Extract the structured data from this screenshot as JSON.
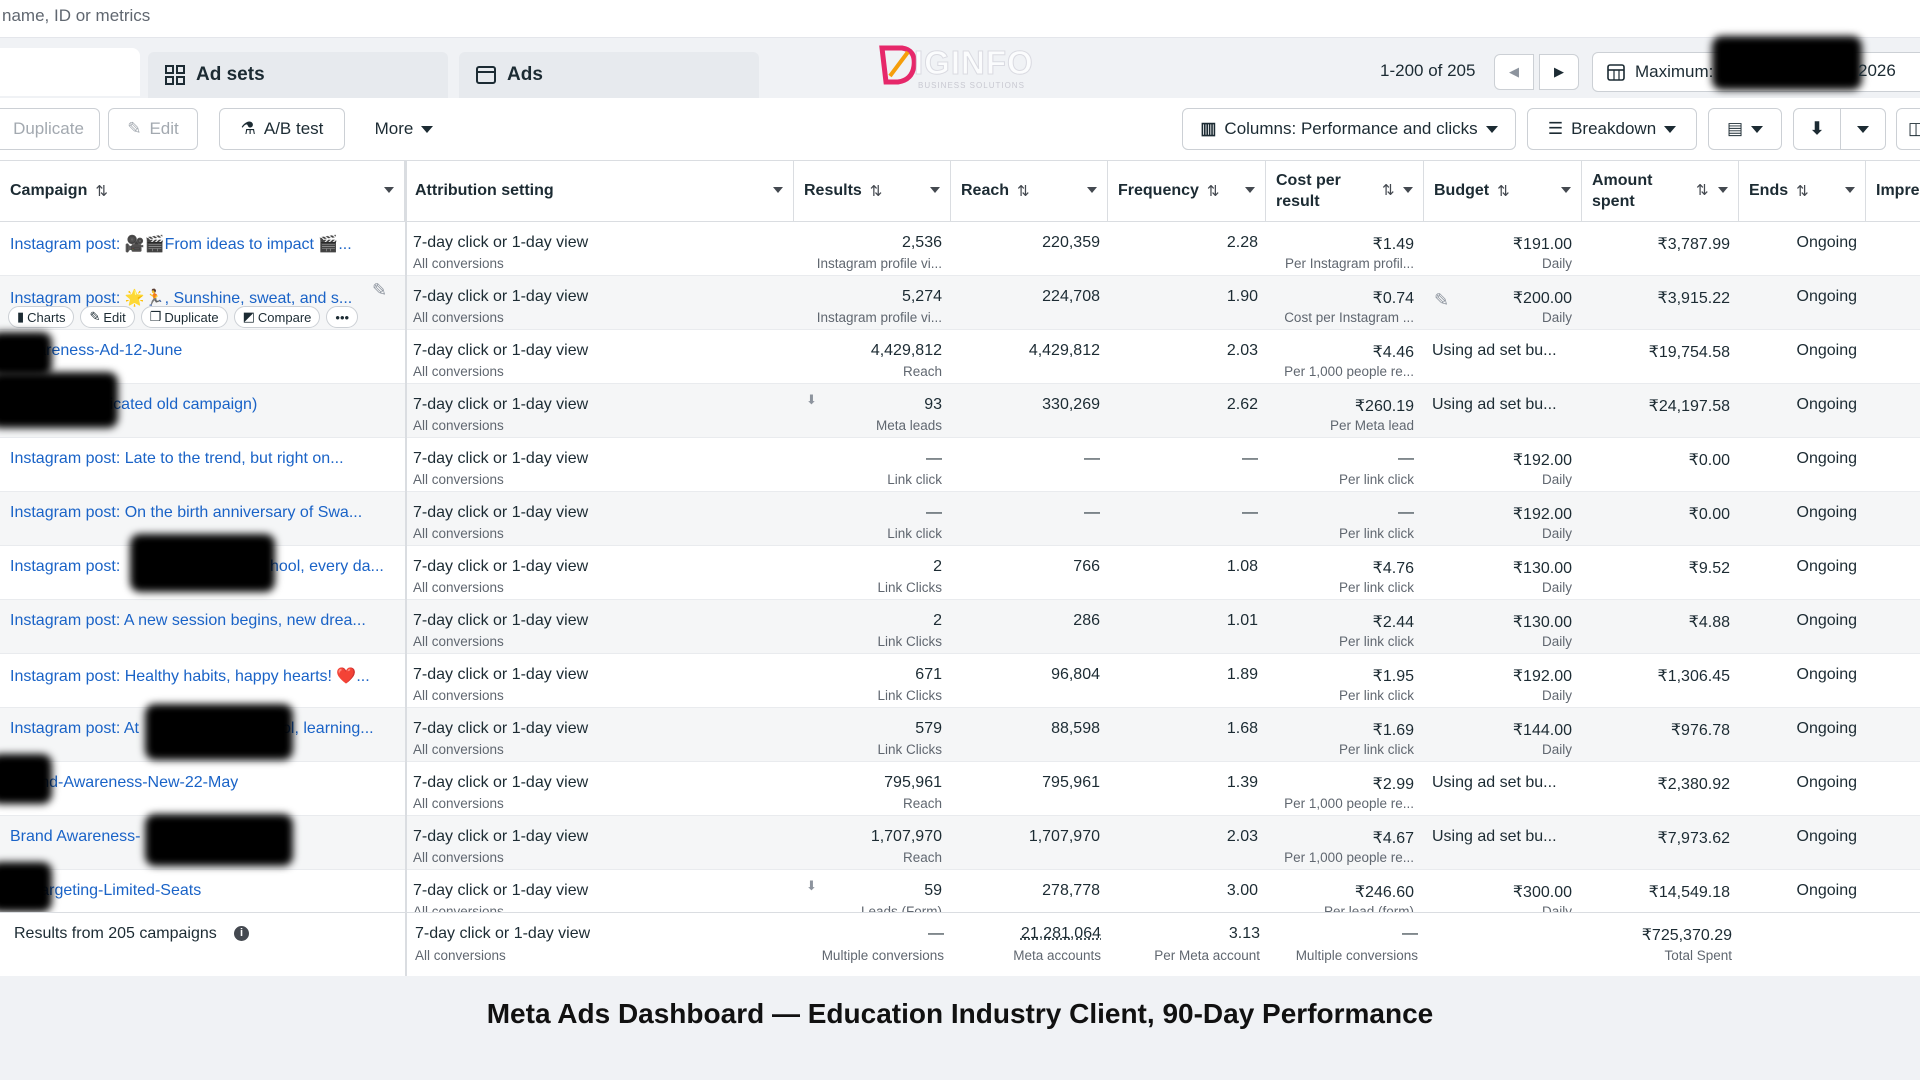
{
  "search": {
    "placeholder": "name, ID or metrics"
  },
  "tabs": {
    "adsets": "Ad sets",
    "ads": "Ads"
  },
  "logo": {
    "text": "IGINFO",
    "subtext": "BUSINESS SOLUTIONS"
  },
  "pagination": {
    "range": "1-200 of 205"
  },
  "date_range": {
    "label": "Maximum:",
    "year_suffix": "2026"
  },
  "toolbar": {
    "duplicate": "Duplicate",
    "edit": "Edit",
    "ab_test": "A/B test",
    "more": "More",
    "columns": "Columns: Performance and clicks",
    "breakdown": "Breakdown"
  },
  "headers": {
    "campaign": "Campaign",
    "attribution": "Attribution setting",
    "results": "Results",
    "reach": "Reach",
    "frequency": "Frequency",
    "cost_line1": "Cost per",
    "cost_line2": "result",
    "budget": "Budget",
    "amount_line1": "Amount",
    "amount_line2": "spent",
    "ends": "Ends",
    "impressions": "Impres"
  },
  "row_actions": {
    "charts": "Charts",
    "edit": "Edit",
    "duplicate": "Duplicate",
    "compare": "Compare",
    "more": "•••"
  },
  "rows": [
    {
      "campaign": "Instagram post: 🎥🎬From ideas to impact 🎬...",
      "attribution": "7-day click or 1-day view",
      "attribution_sub": "All conversions",
      "results": "2,536",
      "results_sub": "Instagram profile vi...",
      "reach": "220,359",
      "frequency": "2.28",
      "cost": "₹1.49",
      "cost_sub": "Per Instagram profil...",
      "budget": "₹191.00",
      "budget_sub": "Daily",
      "amount": "₹3,787.99",
      "ends": "Ongoing"
    },
    {
      "campaign": "Instagram post: 🌟🏃, Sunshine, sweat, and s...",
      "attribution": "7-day click or 1-day view",
      "attribution_sub": "All conversions",
      "results": "5,274",
      "results_sub": "Instagram profile vi...",
      "reach": "224,708",
      "frequency": "1.90",
      "cost": "₹0.74",
      "cost_sub": "Cost per Instagram ...",
      "budget": "₹200.00",
      "budget_sub": "Daily",
      "amount": "₹3,915.22",
      "ends": "Ongoing"
    },
    {
      "campaign": "-Awareness-Ad-12-June",
      "attribution": "7-day click or 1-day view",
      "attribution_sub": "All conversions",
      "results": "4,429,812",
      "results_sub": "Reach",
      "reach": "4,429,812",
      "frequency": "2.03",
      "cost": "₹4.46",
      "cost_sub": "Per 1,000 people re...",
      "budget": "Using ad set bu...",
      "budget_sub": "",
      "amount": "₹19,754.58",
      "ends": "Ongoing"
    },
    {
      "campaign": "29_Dec_(duplicated old campaign)",
      "attribution": "7-day click or 1-day view",
      "attribution_sub": "All conversions",
      "results": "93",
      "results_sub": "Meta leads",
      "reach": "330,269",
      "frequency": "2.62",
      "cost": "₹260.19",
      "cost_sub": "Per Meta lead",
      "budget": "Using ad set bu...",
      "budget_sub": "",
      "amount": "₹24,197.58",
      "ends": "Ongoing"
    },
    {
      "campaign": "Instagram post: Late to the trend, but right on...",
      "attribution": "7-day click or 1-day view",
      "attribution_sub": "All conversions",
      "results": "—",
      "results_sub": "Link click",
      "reach": "—",
      "frequency": "—",
      "cost": "—",
      "cost_sub": "Per link click",
      "budget": "₹192.00",
      "budget_sub": "Daily",
      "amount": "₹0.00",
      "ends": "Ongoing"
    },
    {
      "campaign": "Instagram post: On the birth anniversary of Swa...",
      "attribution": "7-day click or 1-day view",
      "attribution_sub": "All conversions",
      "results": "—",
      "results_sub": "Link click",
      "reach": "—",
      "frequency": "—",
      "cost": "—",
      "cost_sub": "Per link click",
      "budget": "₹192.00",
      "budget_sub": "Daily",
      "amount": "₹0.00",
      "ends": "Ongoing"
    },
    {
      "campaign": "Instagram post: ",
      "campaign_tail": "hool, every da...",
      "attribution": "7-day click or 1-day view",
      "attribution_sub": "All conversions",
      "results": "2",
      "results_sub": "Link Clicks",
      "reach": "766",
      "frequency": "1.08",
      "cost": "₹4.76",
      "cost_sub": "Per link click",
      "budget": "₹130.00",
      "budget_sub": "Daily",
      "amount": "₹9.52",
      "ends": "Ongoing"
    },
    {
      "campaign": "Instagram post: A new session begins, new drea...",
      "attribution": "7-day click or 1-day view",
      "attribution_sub": "All conversions",
      "results": "2",
      "results_sub": "Link Clicks",
      "reach": "286",
      "frequency": "1.01",
      "cost": "₹2.44",
      "cost_sub": "Per link click",
      "budget": "₹130.00",
      "budget_sub": "Daily",
      "amount": "₹4.88",
      "ends": "Ongoing"
    },
    {
      "campaign": "Instagram post: Healthy habits, happy hearts! ❤️...",
      "attribution": "7-day click or 1-day view",
      "attribution_sub": "All conversions",
      "results": "671",
      "results_sub": "Link Clicks",
      "reach": "96,804",
      "frequency": "1.89",
      "cost": "₹1.95",
      "cost_sub": "Per link click",
      "budget": "₹192.00",
      "budget_sub": "Daily",
      "amount": "₹1,306.45",
      "ends": "Ongoing"
    },
    {
      "campaign": "Instagram post: At",
      "campaign_tail": "ol, learning...",
      "attribution": "7-day click or 1-day view",
      "attribution_sub": "All conversions",
      "results": "579",
      "results_sub": "Link Clicks",
      "reach": "88,598",
      "frequency": "1.68",
      "cost": "₹1.69",
      "cost_sub": "Per link click",
      "budget": "₹144.00",
      "budget_sub": "Daily",
      "amount": "₹976.78",
      "ends": "Ongoing"
    },
    {
      "campaign": "-Brand-Awareness-New-22-May",
      "attribution": "7-day click or 1-day view",
      "attribution_sub": "All conversions",
      "results": "795,961",
      "results_sub": "Reach",
      "reach": "795,961",
      "frequency": "1.39",
      "cost": "₹2.99",
      "cost_sub": "Per 1,000 people re...",
      "budget": "Using ad set bu...",
      "budget_sub": "",
      "amount": "₹2,380.92",
      "ends": "Ongoing"
    },
    {
      "campaign": "Brand Awareness-",
      "attribution": "7-day click or 1-day view",
      "attribution_sub": "All conversions",
      "results": "1,707,970",
      "results_sub": "Reach",
      "reach": "1,707,970",
      "frequency": "2.03",
      "cost": "₹4.67",
      "cost_sub": "Per 1,000 people re...",
      "budget": "Using ad set bu...",
      "budget_sub": "",
      "amount": "₹7,973.62",
      "ends": "Ongoing"
    },
    {
      "campaign": "-Retargeting-Limited-Seats",
      "attribution": "7-day click or 1-day view",
      "attribution_sub": "All conversions",
      "results": "59",
      "results_sub": "Leads (Form)",
      "reach": "278,778",
      "frequency": "3.00",
      "cost": "₹246.60",
      "cost_sub": "Per lead (form)",
      "budget": "₹300.00",
      "budget_sub": "Daily",
      "amount": "₹14,549.18",
      "ends": "Ongoing"
    }
  ],
  "footer": {
    "label": "Results from 205 campaigns",
    "attribution": "7-day click or 1-day view",
    "attribution_sub": "All conversions",
    "results": "—",
    "results_sub": "Multiple conversions",
    "reach": "21,281,064",
    "reach_sub": "Meta accounts",
    "frequency": "3.13",
    "frequency_sub": "Per Meta account",
    "cost": "—",
    "cost_sub": "Multiple conversions",
    "amount": "₹725,370.29",
    "amount_sub": "Total Spent"
  },
  "caption": "Meta Ads Dashboard — Education Industry Client, 90-Day Performance",
  "colors": {
    "link": "#1a63c7",
    "text": "#1c2b33",
    "border": "#dadde1"
  }
}
